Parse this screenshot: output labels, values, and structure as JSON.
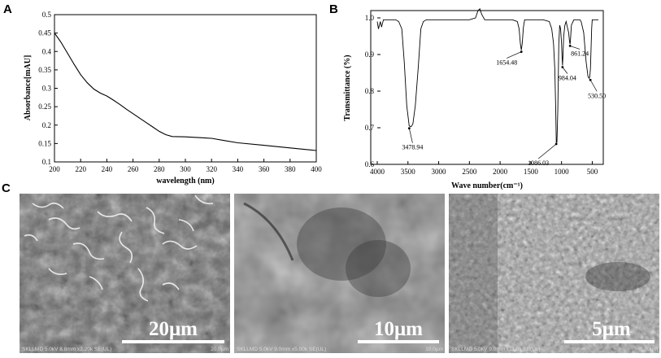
{
  "panels": {
    "a": "A",
    "b": "B",
    "c": "C"
  },
  "chart_data": [
    {
      "type": "line",
      "panel": "A",
      "xlabel": "wavelength (nm)",
      "ylabel": "Absorbance[mAU]",
      "xlim": [
        200,
        400
      ],
      "ylim": [
        0.1,
        0.5
      ],
      "xticks": [
        "200",
        "220",
        "240",
        "260",
        "280",
        "300",
        "320",
        "340",
        "360",
        "380",
        "400"
      ],
      "yticks": [
        "0.1",
        "0.15",
        "0.2",
        "0.25",
        "0.3",
        "0.35",
        "0.4",
        "0.45",
        "0.5"
      ],
      "grid": false,
      "series": [
        {
          "x": [
            200,
            205,
            210,
            215,
            220,
            225,
            230,
            235,
            240,
            245,
            250,
            255,
            260,
            265,
            270,
            275,
            280,
            285,
            290,
            300,
            310,
            320,
            330,
            340,
            360,
            380,
            400
          ],
          "y": [
            0.45,
            0.425,
            0.395,
            0.365,
            0.337,
            0.315,
            0.298,
            0.287,
            0.279,
            0.268,
            0.256,
            0.243,
            0.231,
            0.219,
            0.207,
            0.195,
            0.183,
            0.174,
            0.169,
            0.168,
            0.166,
            0.164,
            0.158,
            0.152,
            0.145,
            0.138,
            0.131
          ]
        }
      ]
    },
    {
      "type": "line",
      "panel": "B",
      "xlabel": "Wave number(cm⁻¹)",
      "ylabel": "Transmittance (%)",
      "xlim": [
        4000,
        400
      ],
      "ylim": [
        0.6,
        1.0
      ],
      "xticks": [
        "4000",
        "3500",
        "3000",
        "2500",
        "2000",
        "1500",
        "1000",
        "500"
      ],
      "yticks": [
        "0.6",
        "0.7",
        "0.8",
        "0.9",
        "1.0"
      ],
      "grid": false,
      "series": [
        {
          "x": [
            4000,
            3980,
            3950,
            3930,
            3900,
            3850,
            3800,
            3700,
            3650,
            3600,
            3560,
            3520,
            3480,
            3450,
            3420,
            3380,
            3330,
            3290,
            3250,
            3200,
            3100,
            3000,
            2900,
            2700,
            2500,
            2400,
            2360,
            2330,
            2300,
            2250,
            2000,
            1800,
            1720,
            1690,
            1670,
            1655,
            1640,
            1620,
            1600,
            1560,
            1500,
            1400,
            1300,
            1200,
            1160,
            1130,
            1110,
            1095,
            1086,
            1075,
            1060,
            1045,
            1030,
            1015,
            1000,
            992,
            984,
            976,
            965,
            945,
            925,
            905,
            885,
            870,
            861,
            852,
            840,
            800,
            740,
            700,
            680,
            640,
            600,
            570,
            550,
            540,
            530,
            520,
            510,
            500,
            490,
            470,
            450,
            420,
            400
          ],
          "y": [
            0.99,
            0.97,
            0.99,
            0.975,
            0.995,
            0.995,
            0.995,
            0.995,
            0.99,
            0.97,
            0.88,
            0.76,
            0.705,
            0.703,
            0.71,
            0.76,
            0.87,
            0.97,
            0.99,
            0.995,
            0.995,
            0.995,
            0.995,
            0.995,
            0.995,
            1.0,
            1.02,
            1.025,
            1.01,
            0.995,
            0.995,
            0.995,
            0.99,
            0.97,
            0.93,
            0.912,
            0.93,
            0.975,
            0.995,
            0.995,
            0.995,
            0.995,
            0.995,
            0.99,
            0.97,
            0.93,
            0.86,
            0.75,
            0.66,
            0.66,
            0.75,
            0.93,
            0.98,
            0.97,
            0.93,
            0.895,
            0.87,
            0.9,
            0.95,
            0.98,
            0.99,
            0.975,
            0.96,
            0.935,
            0.928,
            0.945,
            0.98,
            0.995,
            0.995,
            0.995,
            0.99,
            0.96,
            0.88,
            0.84,
            0.835,
            0.84,
            0.86,
            0.91,
            0.97,
            0.995,
            0.995,
            0.995,
            0.995,
            0.995,
            0.995
          ]
        }
      ],
      "annotations": [
        {
          "label": "3478.94",
          "x": 3478.94,
          "y": 0.703
        },
        {
          "label": "1654.48",
          "x": 1654.48,
          "y": 0.912
        },
        {
          "label": "1086.03",
          "x": 1086.03,
          "y": 0.66
        },
        {
          "label": "984.04",
          "x": 984.04,
          "y": 0.87
        },
        {
          "label": "861.24",
          "x": 861.24,
          "y": 0.928
        },
        {
          "label": "530.50",
          "x": 530.5,
          "y": 0.835
        }
      ]
    }
  ],
  "sem_images": [
    {
      "scale_label": "20μm",
      "info": "SKLLMD 5.0kV 8.8mm x2.20k SE(UL)",
      "bar_label": "20.0μm"
    },
    {
      "scale_label": "10μm",
      "info": "SKLLMD 5.0kV 9.0mm x5.00k SE(UL)",
      "bar_label": "10.0μm"
    },
    {
      "scale_label": "5μm",
      "info": "SKLLMD 5.0kV 9.0mm x11.0k SE(UL)",
      "bar_label": "5.00μm"
    }
  ]
}
